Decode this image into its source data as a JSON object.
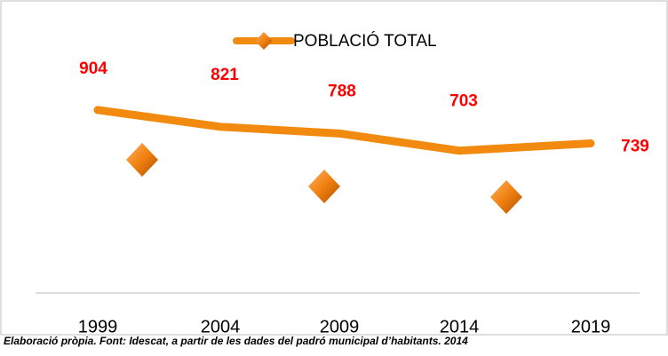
{
  "chart_data": {
    "type": "line",
    "categories": [
      "1999",
      "2004",
      "2009",
      "2014",
      "2019"
    ],
    "series": [
      {
        "name": "POBLACIÓ TOTAL",
        "color": "#f28a10",
        "values": [
          904,
          821,
          788,
          703,
          739
        ]
      }
    ],
    "ylim": [
      0,
      1000
    ],
    "note": "Elaboració pròpia. Font: Idescat, a partir de les dades del padró municipal d’habitants. 2014"
  }
}
